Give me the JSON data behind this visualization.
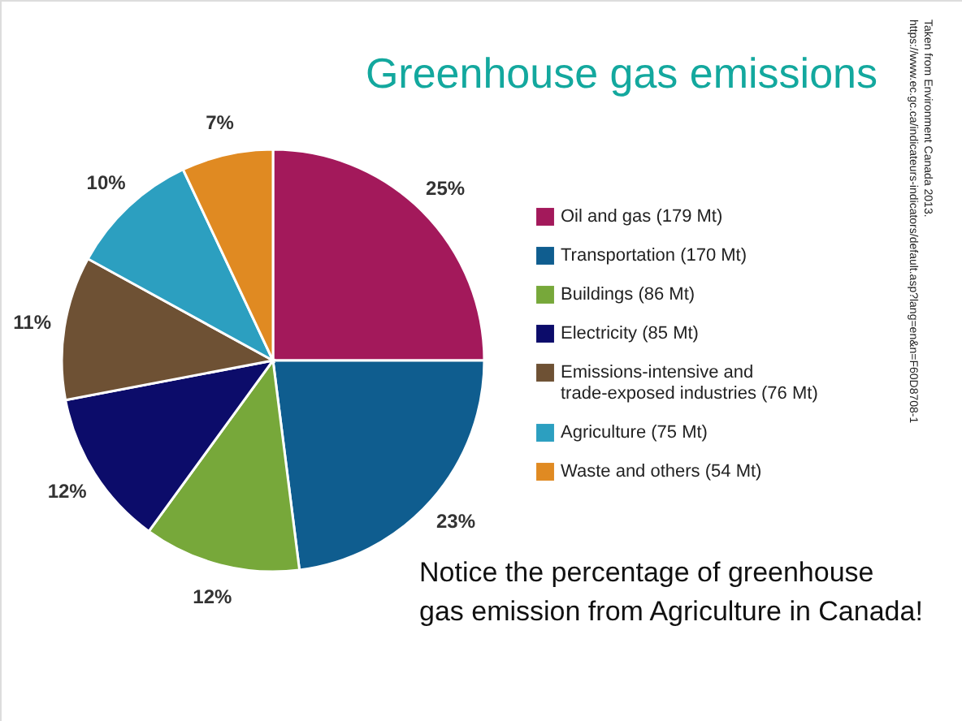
{
  "chart_data": {
    "type": "pie",
    "title": "Greenhouse gas emissions",
    "categories": [
      "Oil and gas (179 Mt)",
      "Transportation (170 Mt)",
      "Buildings (86 Mt)",
      "Electricity (85 Mt)",
      "Emissions-intensive and\ntrade-exposed industries (76 Mt)",
      "Agriculture (75 Mt)",
      "Waste and others (54 Mt)"
    ],
    "values": [
      25,
      23,
      12,
      12,
      11,
      10,
      7
    ],
    "value_labels": [
      "25%",
      "23%",
      "12%",
      "12%",
      "11%",
      "10%",
      "7%"
    ],
    "colors": [
      "#a3195b",
      "#0f5d8f",
      "#77a83a",
      "#0c0c6a",
      "#6e5134",
      "#2c9fc0",
      "#e08a22"
    ],
    "legend": "right",
    "annotations": [
      "Notice the percentage of greenhouse\ngas emission from Agriculture in Canada!",
      "Taken from Environment Canada 2013.\nhttps://www.ec.gc.ca/indicateurs-indicators/default.asp?lang=en&n=F60D8708-1"
    ]
  }
}
